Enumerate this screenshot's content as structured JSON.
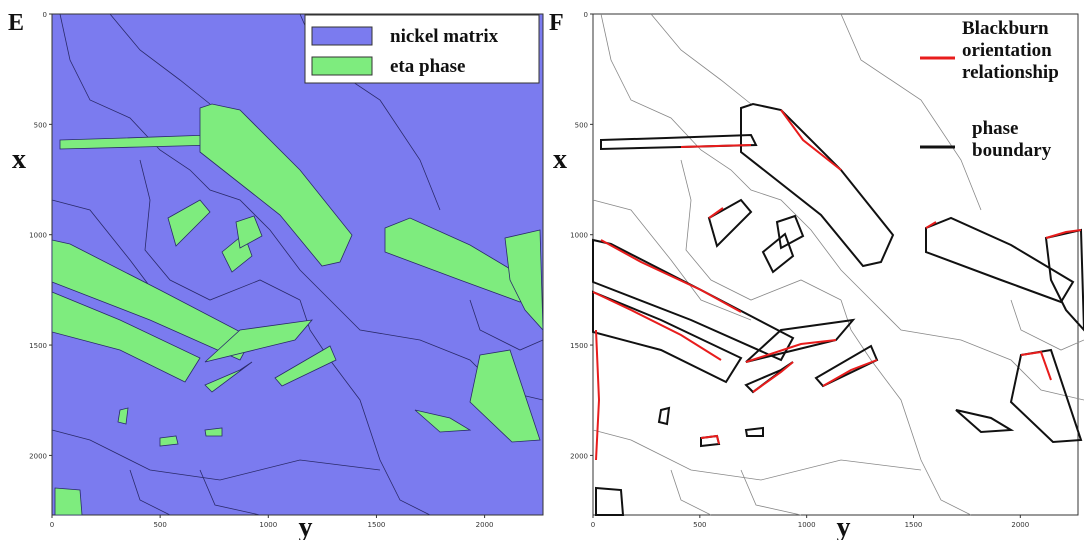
{
  "panels": [
    {
      "letter": "E",
      "vertical_axis_label": "x",
      "horizontal_axis_label": "y",
      "xlim": [
        0,
        2270
      ],
      "ylim": [
        0,
        2270
      ],
      "xticks": [
        0,
        500,
        1000,
        1500,
        2000
      ],
      "yticks": [
        0,
        500,
        1000,
        1500,
        2000
      ],
      "legend": [
        {
          "label": [
            "nickel matrix"
          ],
          "color": "#7b7bef"
        },
        {
          "label": [
            "eta phase"
          ],
          "color": "#7eec7e"
        }
      ]
    },
    {
      "letter": "F",
      "vertical_axis_label": "x",
      "horizontal_axis_label": "y",
      "xlim": [
        0,
        2270
      ],
      "ylim": [
        0,
        2270
      ],
      "xticks": [
        0,
        500,
        1000,
        1500,
        2000
      ],
      "yticks": [
        0,
        500,
        1000,
        1500,
        2000
      ],
      "legend": [
        {
          "label": [
            "Blackburn",
            "orientation",
            "relationship"
          ],
          "color": "#e81c1c"
        },
        {
          "label": [
            "phase",
            "boundary"
          ],
          "color": "#111111"
        }
      ]
    }
  ]
}
